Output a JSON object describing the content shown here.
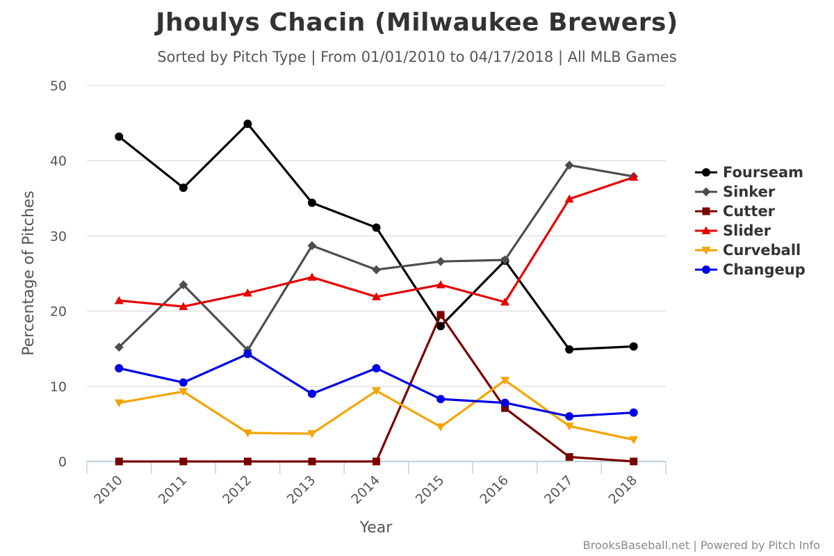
{
  "chart_data": {
    "type": "line",
    "title": "Jhoulys Chacin (Milwaukee Brewers)",
    "subtitle": "Sorted by Pitch Type | From 01/01/2010 to 04/17/2018 | All MLB Games",
    "xlabel": "Year",
    "ylabel": "Percentage of Pitches",
    "categories": [
      "2010",
      "2011",
      "2012",
      "2013",
      "2014",
      "2015",
      "2016",
      "2017",
      "2018"
    ],
    "ylim": [
      0,
      50
    ],
    "yticks": [
      0,
      10,
      20,
      30,
      40,
      50
    ],
    "grid": true,
    "legend_position": "right",
    "series": [
      {
        "name": "Fourseam",
        "color": "#000000",
        "marker": "circle",
        "values": [
          43.2,
          36.4,
          44.9,
          34.4,
          31.1,
          18.0,
          26.7,
          14.9,
          15.3
        ]
      },
      {
        "name": "Sinker",
        "color": "#4d4d4d",
        "marker": "diamond",
        "values": [
          15.2,
          23.5,
          14.8,
          28.7,
          25.5,
          26.6,
          26.8,
          39.4,
          37.9
        ]
      },
      {
        "name": "Cutter",
        "color": "#7a0000",
        "marker": "square",
        "values": [
          0.0,
          0.0,
          0.0,
          0.0,
          0.0,
          19.5,
          7.1,
          0.6,
          0.0
        ]
      },
      {
        "name": "Slider",
        "color": "#e60000",
        "marker": "triangle",
        "values": [
          21.4,
          20.6,
          22.4,
          24.5,
          21.9,
          23.5,
          21.2,
          34.9,
          37.8
        ]
      },
      {
        "name": "Curveball",
        "color": "#f5a300",
        "marker": "triangle-down",
        "values": [
          7.8,
          9.3,
          3.8,
          3.7,
          9.4,
          4.6,
          10.8,
          4.7,
          2.9
        ]
      },
      {
        "name": "Changeup",
        "color": "#0000e6",
        "marker": "circle",
        "values": [
          12.4,
          10.5,
          14.3,
          9.0,
          12.4,
          8.3,
          7.8,
          6.0,
          6.5
        ]
      }
    ]
  },
  "credits": "BrooksBaseball.net | Powered by Pitch Info"
}
